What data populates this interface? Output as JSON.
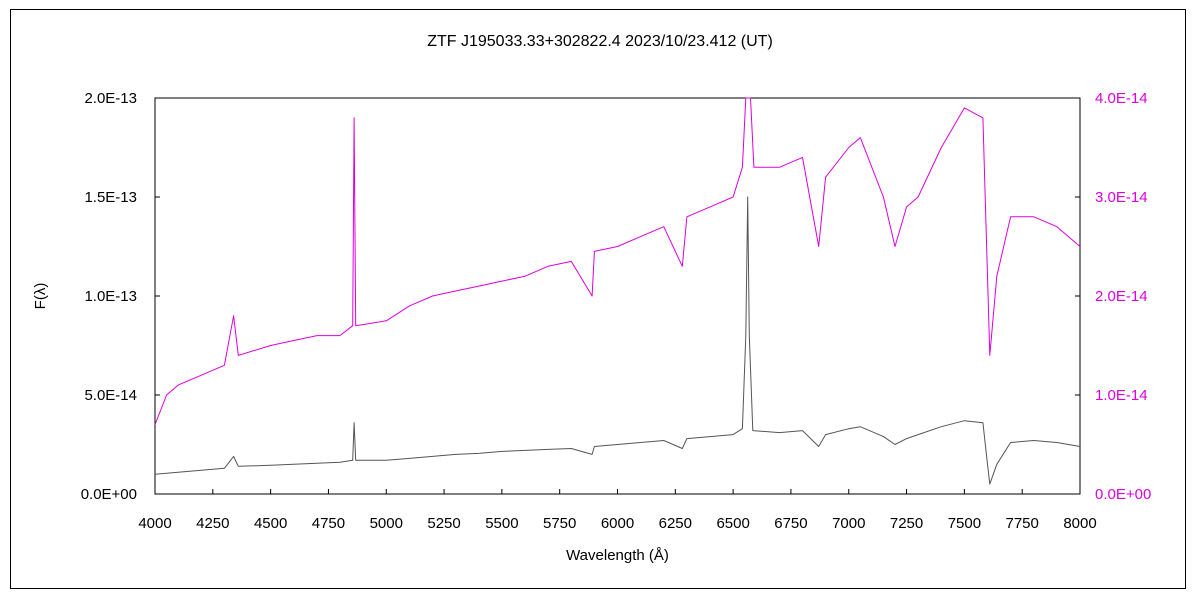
{
  "chart_data": {
    "type": "line",
    "title": "ZTF J195033.33+302822.4     2023/10/23.412 (UT)",
    "xlabel": "Wavelength (Å)",
    "ylabel": "F(λ)",
    "xlim": [
      4000,
      8000
    ],
    "ylim_left": [
      0,
      2e-13
    ],
    "ylim_right": [
      0,
      4e-14
    ],
    "x_ticks": [
      "4000",
      "4250",
      "4500",
      "4750",
      "5000",
      "5250",
      "5500",
      "5750",
      "6000",
      "6250",
      "6500",
      "6750",
      "7000",
      "7250",
      "7500",
      "7750",
      "8000"
    ],
    "y_ticks_left": [
      "0.0E+00",
      "5.0E-14",
      "1.0E-13",
      "1.5E-13",
      "2.0E-13"
    ],
    "y_ticks_right": [
      "0.0E+00",
      "1.0E-14",
      "2.0E-14",
      "3.0E-14",
      "4.0E-14"
    ],
    "grid": false,
    "series": [
      {
        "axis": "left",
        "color": "#555555",
        "points": [
          [
            4000,
            1e-14
          ],
          [
            4100,
            1.1e-14
          ],
          [
            4200,
            1.2e-14
          ],
          [
            4300,
            1.3e-14
          ],
          [
            4340,
            1.9e-14
          ],
          [
            4360,
            1.4e-14
          ],
          [
            4500,
            1.45e-14
          ],
          [
            4600,
            1.5e-14
          ],
          [
            4700,
            1.55e-14
          ],
          [
            4800,
            1.6e-14
          ],
          [
            4855,
            1.7e-14
          ],
          [
            4861,
            3.6e-14
          ],
          [
            4868,
            1.7e-14
          ],
          [
            5000,
            1.7e-14
          ],
          [
            5100,
            1.8e-14
          ],
          [
            5200,
            1.9e-14
          ],
          [
            5300,
            2e-14
          ],
          [
            5400,
            2.05e-14
          ],
          [
            5500,
            2.15e-14
          ],
          [
            5600,
            2.2e-14
          ],
          [
            5700,
            2.25e-14
          ],
          [
            5800,
            2.3e-14
          ],
          [
            5890,
            2e-14
          ],
          [
            5900,
            2.4e-14
          ],
          [
            6000,
            2.5e-14
          ],
          [
            6100,
            2.6e-14
          ],
          [
            6200,
            2.7e-14
          ],
          [
            6280,
            2.3e-14
          ],
          [
            6300,
            2.8e-14
          ],
          [
            6400,
            2.9e-14
          ],
          [
            6500,
            3e-14
          ],
          [
            6540,
            3.3e-14
          ],
          [
            6555,
            8e-14
          ],
          [
            6563,
            1.5e-13
          ],
          [
            6570,
            8e-14
          ],
          [
            6585,
            3.2e-14
          ],
          [
            6700,
            3.1e-14
          ],
          [
            6800,
            3.2e-14
          ],
          [
            6870,
            2.4e-14
          ],
          [
            6900,
            3e-14
          ],
          [
            7000,
            3.3e-14
          ],
          [
            7050,
            3.4e-14
          ],
          [
            7150,
            2.9e-14
          ],
          [
            7200,
            2.5e-14
          ],
          [
            7250,
            2.8e-14
          ],
          [
            7300,
            3e-14
          ],
          [
            7400,
            3.4e-14
          ],
          [
            7500,
            3.7e-14
          ],
          [
            7580,
            3.6e-14
          ],
          [
            7600,
            1.5e-14
          ],
          [
            7610,
            5e-15
          ],
          [
            7640,
            1.5e-14
          ],
          [
            7700,
            2.6e-14
          ],
          [
            7800,
            2.7e-14
          ],
          [
            7900,
            2.6e-14
          ],
          [
            8000,
            2.4e-14
          ]
        ]
      },
      {
        "axis": "right",
        "color": "#dd00dd",
        "points": [
          [
            4000,
            7e-15
          ],
          [
            4050,
            1e-14
          ],
          [
            4100,
            1.1e-14
          ],
          [
            4200,
            1.2e-14
          ],
          [
            4300,
            1.3e-14
          ],
          [
            4340,
            1.8e-14
          ],
          [
            4360,
            1.4e-14
          ],
          [
            4500,
            1.5e-14
          ],
          [
            4600,
            1.55e-14
          ],
          [
            4700,
            1.6e-14
          ],
          [
            4800,
            1.6e-14
          ],
          [
            4855,
            1.7e-14
          ],
          [
            4861,
            3.8e-14
          ],
          [
            4868,
            1.7e-14
          ],
          [
            5000,
            1.75e-14
          ],
          [
            5100,
            1.9e-14
          ],
          [
            5200,
            2e-14
          ],
          [
            5300,
            2.05e-14
          ],
          [
            5400,
            2.1e-14
          ],
          [
            5500,
            2.15e-14
          ],
          [
            5600,
            2.2e-14
          ],
          [
            5700,
            2.3e-14
          ],
          [
            5800,
            2.35e-14
          ],
          [
            5890,
            2e-14
          ],
          [
            5900,
            2.45e-14
          ],
          [
            6000,
            2.5e-14
          ],
          [
            6100,
            2.6e-14
          ],
          [
            6200,
            2.7e-14
          ],
          [
            6280,
            2.3e-14
          ],
          [
            6300,
            2.8e-14
          ],
          [
            6400,
            2.9e-14
          ],
          [
            6500,
            3e-14
          ],
          [
            6540,
            3.3e-14
          ],
          [
            6555,
            4e-14
          ],
          [
            6575,
            4e-14
          ],
          [
            6590,
            3.3e-14
          ],
          [
            6700,
            3.3e-14
          ],
          [
            6800,
            3.4e-14
          ],
          [
            6870,
            2.5e-14
          ],
          [
            6900,
            3.2e-14
          ],
          [
            7000,
            3.5e-14
          ],
          [
            7050,
            3.6e-14
          ],
          [
            7150,
            3e-14
          ],
          [
            7200,
            2.5e-14
          ],
          [
            7250,
            2.9e-14
          ],
          [
            7300,
            3e-14
          ],
          [
            7400,
            3.5e-14
          ],
          [
            7500,
            3.9e-14
          ],
          [
            7580,
            3.8e-14
          ],
          [
            7600,
            2.2e-14
          ],
          [
            7610,
            1.4e-14
          ],
          [
            7640,
            2.2e-14
          ],
          [
            7700,
            2.8e-14
          ],
          [
            7800,
            2.8e-14
          ],
          [
            7900,
            2.7e-14
          ],
          [
            8000,
            2.5e-14
          ]
        ]
      }
    ]
  }
}
